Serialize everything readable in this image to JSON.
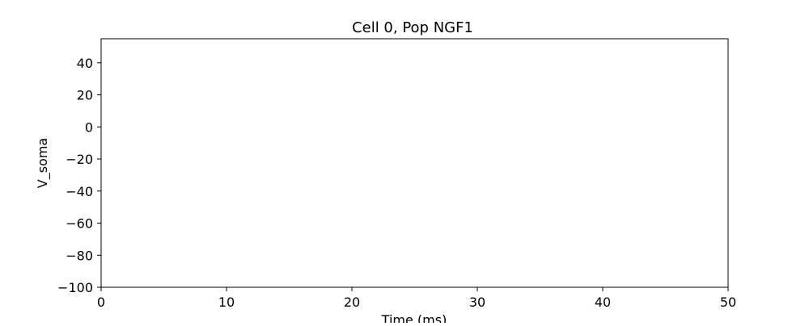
{
  "chart_data": {
    "type": "line",
    "title": "Cell 0, Pop NGF1",
    "xlabel": "Time (ms)",
    "ylabel": "V_soma",
    "xlim": [
      0,
      50
    ],
    "ylim": [
      -100,
      55
    ],
    "xticks": [
      0,
      10,
      20,
      30,
      40,
      50
    ],
    "yticks": [
      -100,
      -80,
      -60,
      -40,
      -20,
      0,
      20,
      40
    ],
    "x": [],
    "series": [
      {
        "values": []
      }
    ],
    "grid": false,
    "legend": "none",
    "colors": {
      "axis": "#000000",
      "line": "#1f77b4",
      "background": "#ffffff"
    }
  }
}
